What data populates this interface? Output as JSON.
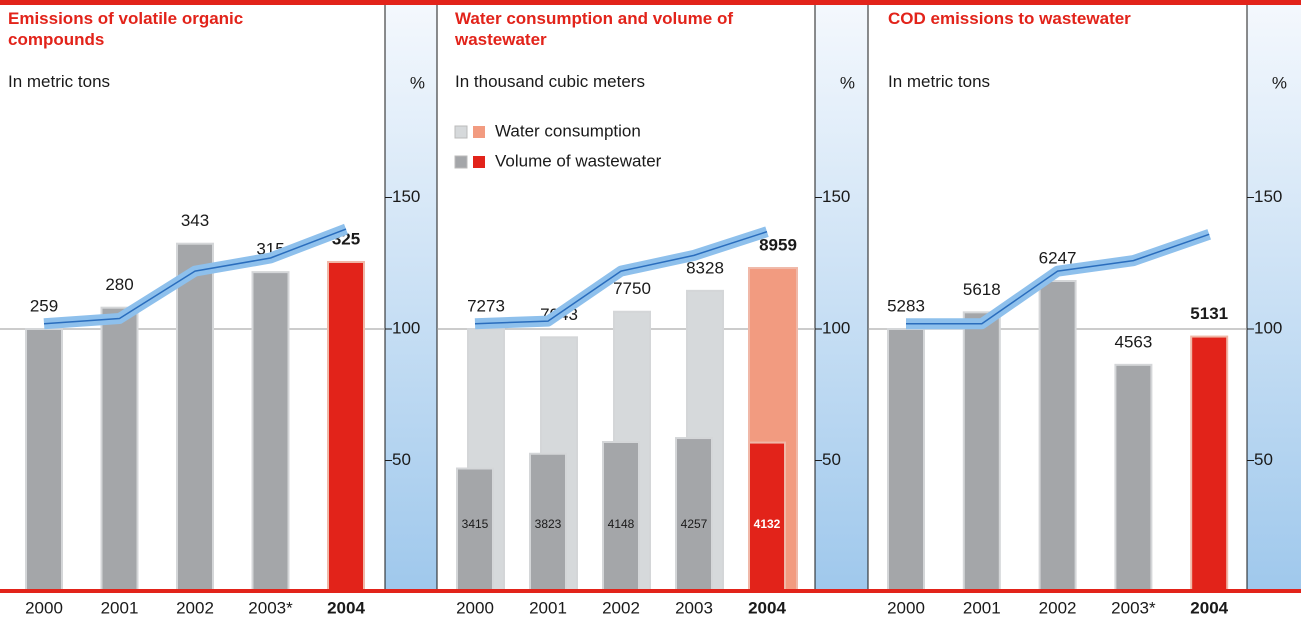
{
  "chart_data": [
    {
      "type": "bar",
      "title": "Emissions of volatile organic compounds",
      "subtitle": "In metric tons",
      "y2label": "%",
      "categories": [
        "2000",
        "2001",
        "2002",
        "2003*",
        "2004"
      ],
      "series": [
        {
          "type": "bar",
          "colors": [
            "#a4a6a9",
            "#a4a6a9",
            "#a4a6a9",
            "#a4a6a9",
            "#e2231a"
          ],
          "values": [
            259,
            280,
            343,
            315,
            325
          ]
        },
        {
          "type": "line",
          "axis": "y2",
          "color": "#2a6dbd",
          "values": [
            102,
            104,
            122,
            127,
            138
          ]
        }
      ],
      "ylim": [
        0,
        518
      ],
      "y2lim": [
        0,
        200
      ],
      "y2ticks": [
        50,
        100,
        150
      ],
      "hline": 100
    },
    {
      "type": "bar",
      "title": "Water consumption and volume of wastewater",
      "subtitle": "In thousand cubic meters",
      "y2label": "%",
      "categories": [
        "2000",
        "2001",
        "2002",
        "2003",
        "2004"
      ],
      "series": [
        {
          "name": "Water consumption",
          "type": "bar",
          "colors": [
            "#d6d9db",
            "#d6d9db",
            "#d6d9db",
            "#d6d9db",
            "#f29b80"
          ],
          "values": [
            7273,
            7043,
            7750,
            8328,
            8959
          ]
        },
        {
          "name": "Volume of wastewater",
          "type": "bar",
          "colors": [
            "#a4a6a9",
            "#a4a6a9",
            "#a4a6a9",
            "#a4a6a9",
            "#e2231a"
          ],
          "values": [
            3415,
            3823,
            4148,
            4257,
            4132
          ]
        },
        {
          "type": "line",
          "axis": "y2",
          "color": "#2a6dbd",
          "values": [
            102,
            103,
            122,
            128,
            137
          ]
        }
      ],
      "ylim": [
        0,
        14546
      ],
      "y2lim": [
        0,
        200
      ],
      "y2ticks": [
        50,
        100,
        150
      ],
      "hline": 100
    },
    {
      "type": "bar",
      "title": "COD emissions to wastewater",
      "subtitle": "In metric tons",
      "y2label": "%",
      "categories": [
        "2000",
        "2001",
        "2002",
        "2003*",
        "2004"
      ],
      "series": [
        {
          "type": "bar",
          "colors": [
            "#a4a6a9",
            "#a4a6a9",
            "#a4a6a9",
            "#a4a6a9",
            "#e2231a"
          ],
          "values": [
            5283,
            5618,
            6247,
            4563,
            5131
          ]
        },
        {
          "type": "line",
          "axis": "y2",
          "color": "#2a6dbd",
          "values": [
            102,
            102,
            122,
            126,
            136
          ]
        }
      ],
      "ylim": [
        0,
        10566
      ],
      "y2lim": [
        0,
        200
      ],
      "y2ticks": [
        50,
        100,
        150
      ],
      "hline": 100
    }
  ]
}
